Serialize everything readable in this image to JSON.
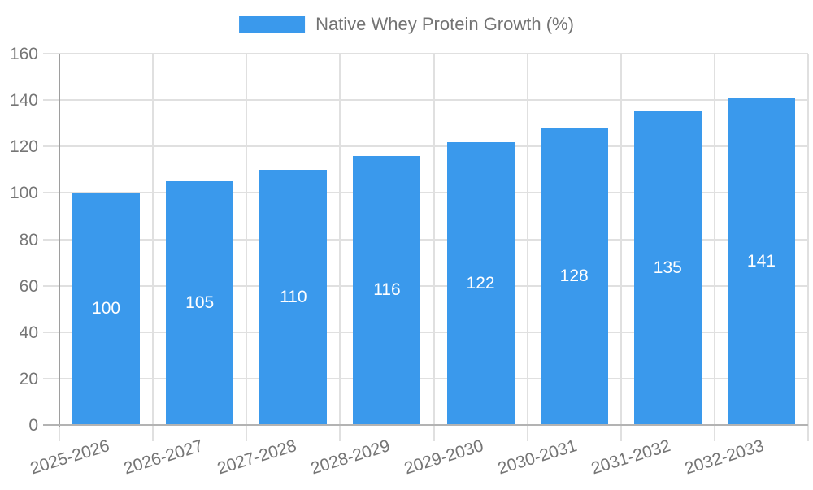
{
  "chart_data": {
    "type": "bar",
    "title": "Native Whey Protein Growth (%)",
    "legend_position": "top",
    "categories": [
      "2025-2026",
      "2026-2027",
      "2027-2028",
      "2028-2029",
      "2029-2030",
      "2030-2031",
      "2031-2032",
      "2032-2033"
    ],
    "series": [
      {
        "name": "Native Whey Protein Growth (%)",
        "values": [
          100,
          105,
          110,
          116,
          122,
          128,
          135,
          141
        ]
      }
    ],
    "value_labels_shown": true,
    "xlabel": "",
    "ylabel": "",
    "ylim": [
      0,
      160
    ],
    "ytick_step": 20,
    "yticks": [
      0,
      20,
      40,
      60,
      80,
      100,
      120,
      140,
      160
    ],
    "grid": true,
    "colors": {
      "bar": "#3a99ec",
      "bar_value_text": "#ffffff",
      "axis_text": "#757575",
      "legend_text": "#737373",
      "grid_line": "#e0e0e0",
      "y_axis_line": "#9e9e9e",
      "x_axis_line": "#b3b3b3",
      "tick_line": "#cccccc"
    }
  }
}
